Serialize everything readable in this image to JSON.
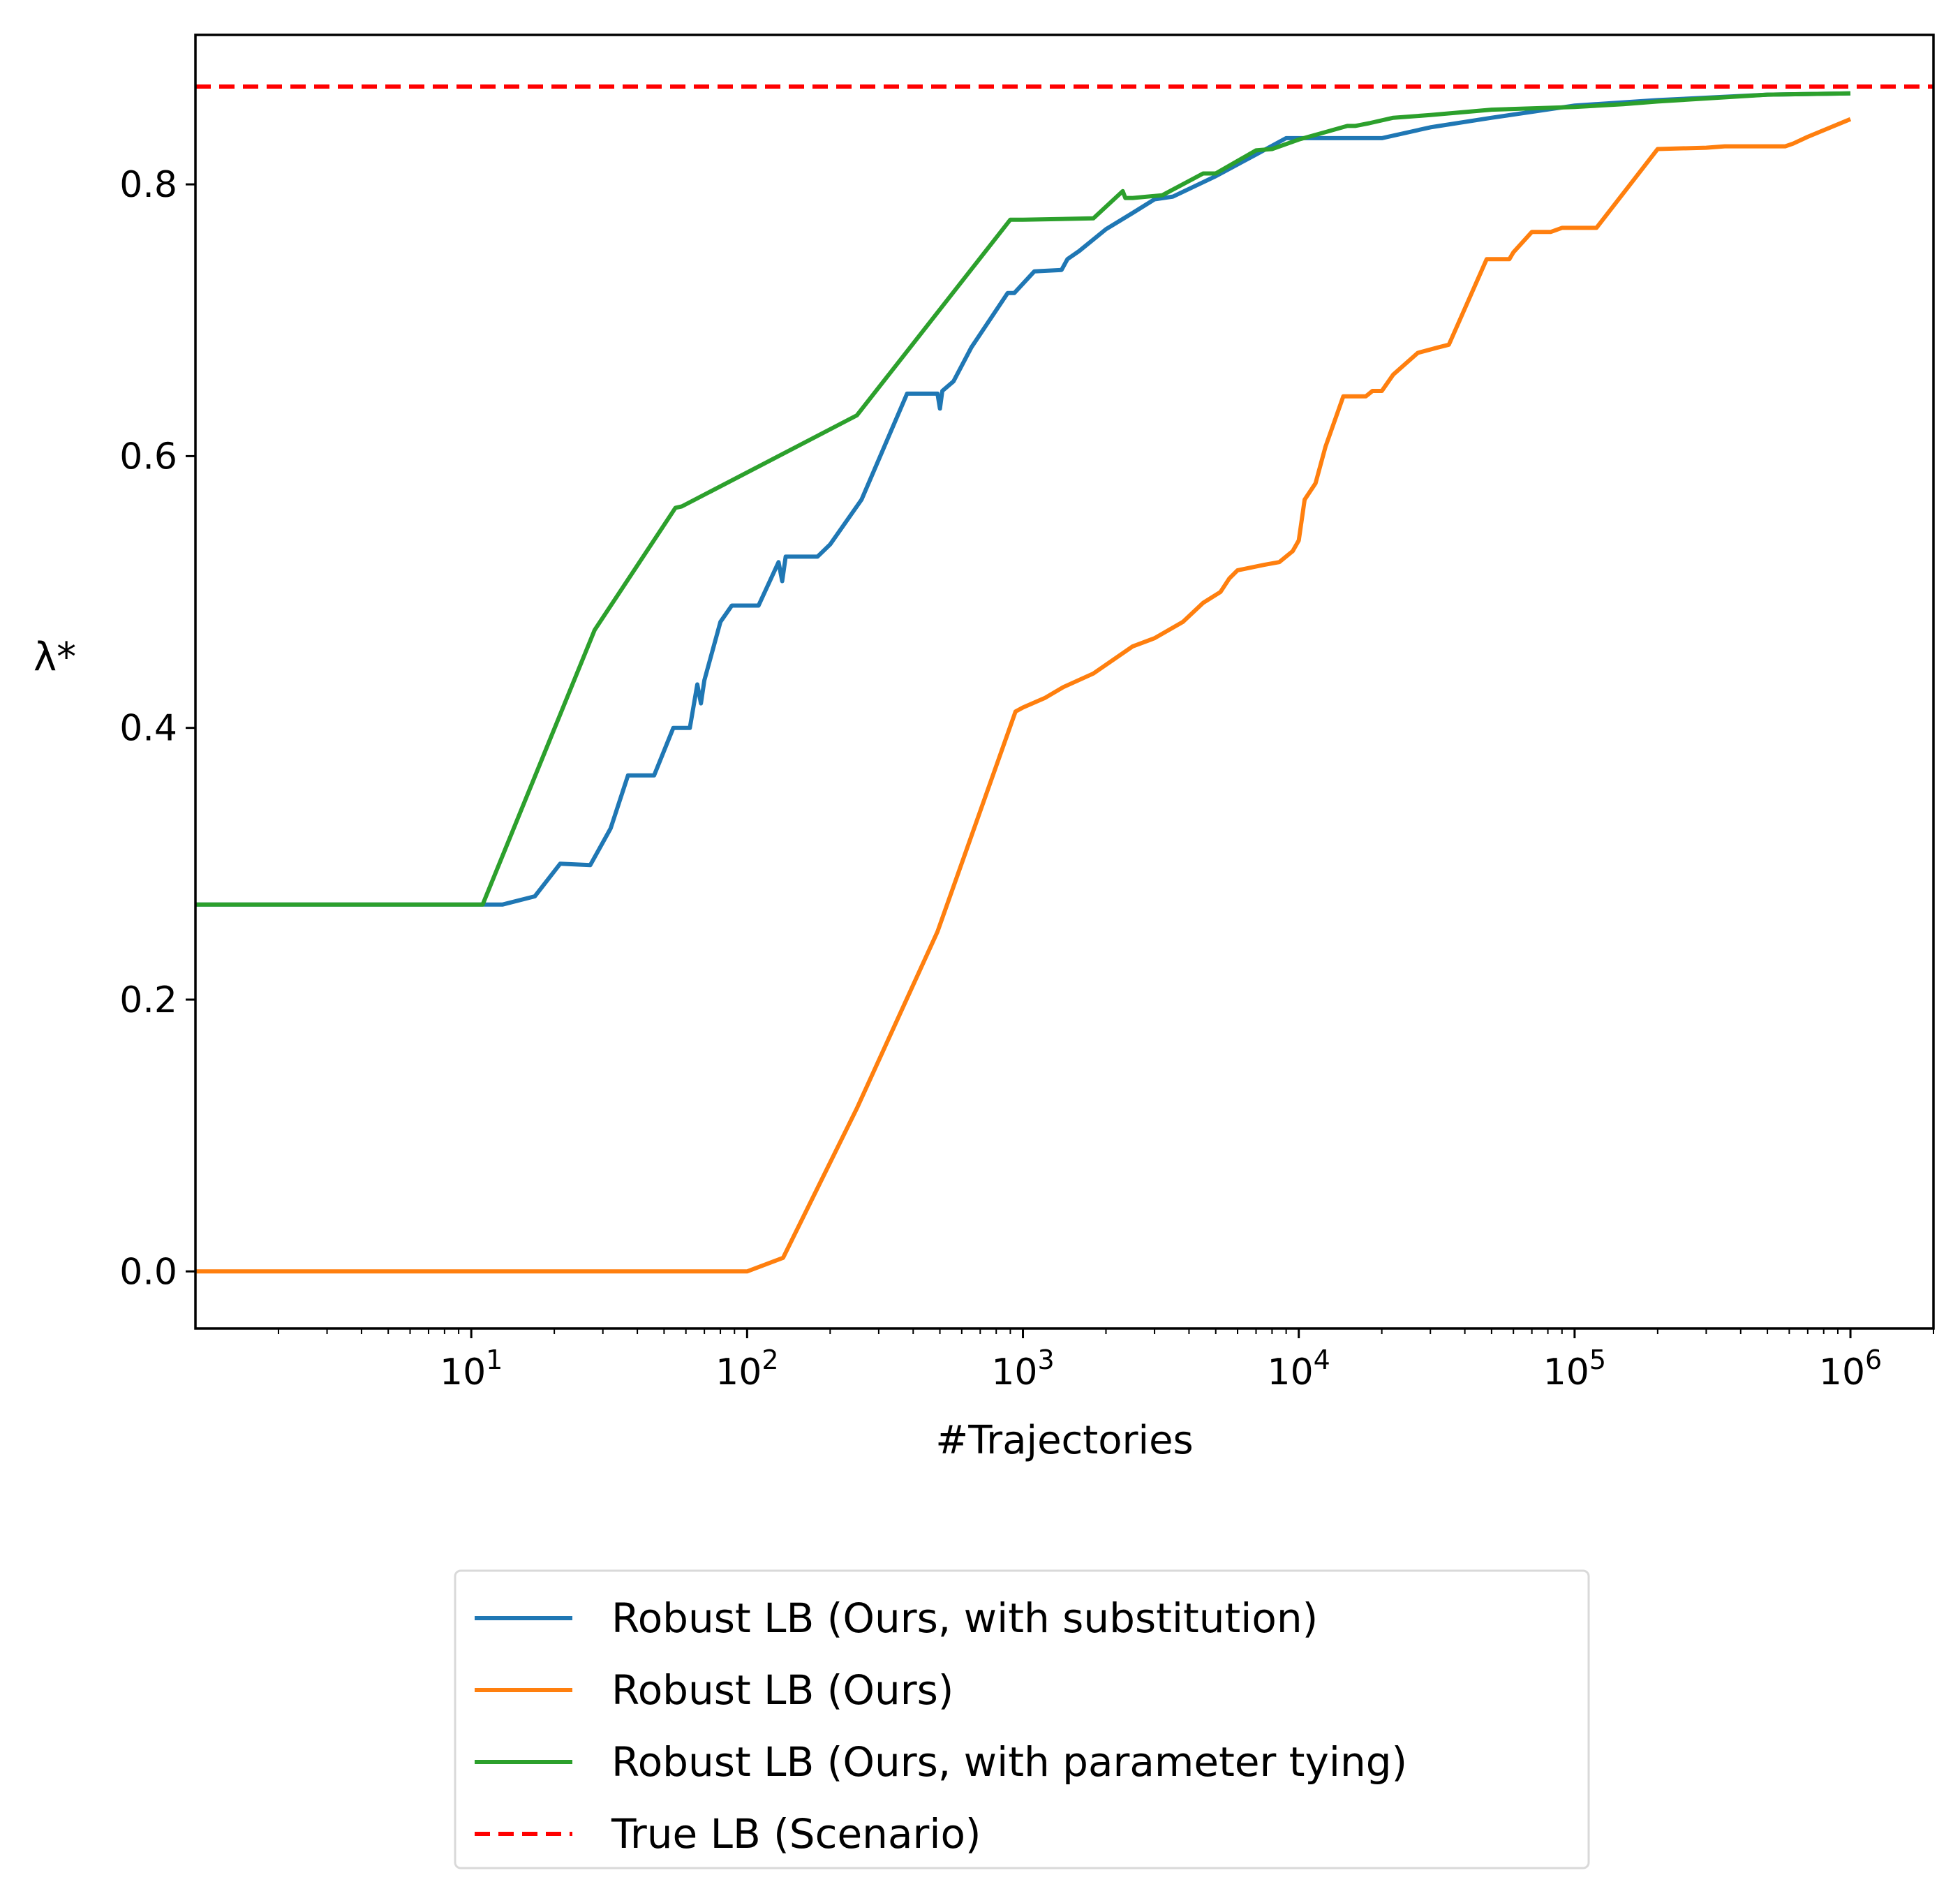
{
  "chart_data": {
    "type": "line",
    "title": "",
    "xlabel": "#Trajectories",
    "ylabel": "λ*",
    "x_scale": "log",
    "xlim": [
      1,
      2000000
    ],
    "ylim": [
      -0.042,
      0.91
    ],
    "x_ticks": [
      {
        "value": 10,
        "base": "10",
        "exp": "1"
      },
      {
        "value": 100,
        "base": "10",
        "exp": "2"
      },
      {
        "value": 1000,
        "base": "10",
        "exp": "3"
      },
      {
        "value": 10000,
        "base": "10",
        "exp": "4"
      },
      {
        "value": 100000,
        "base": "10",
        "exp": "5"
      },
      {
        "value": 1000000,
        "base": "10",
        "exp": "6"
      }
    ],
    "y_ticks": [
      {
        "value": 0.0,
        "label": "0.0"
      },
      {
        "value": 0.2,
        "label": "0.2"
      },
      {
        "value": 0.4,
        "label": "0.4"
      },
      {
        "value": 0.6,
        "label": "0.6"
      },
      {
        "value": 0.8,
        "label": "0.8"
      }
    ],
    "grid": false,
    "legend_position": "below-center",
    "series": [
      {
        "name": "Robust LB (Ours, with substitution)",
        "color": "#1f77b4",
        "style": "solid",
        "x": [
          1,
          11,
          13,
          17,
          21,
          27,
          32,
          37,
          46,
          54,
          62,
          66,
          68,
          70,
          80,
          88,
          100,
          110,
          130,
          134,
          138,
          180,
          200,
          260,
          380,
          490,
          500,
          510,
          560,
          650,
          880,
          930,
          1100,
          1380,
          1450,
          1600,
          2000,
          2500,
          3000,
          3500,
          5000,
          7000,
          9000,
          12000,
          20000,
          30000,
          50000,
          100000,
          200000,
          500000,
          1000000
        ],
        "y": [
          0.27,
          0.27,
          0.27,
          0.276,
          0.3,
          0.299,
          0.326,
          0.365,
          0.365,
          0.4,
          0.4,
          0.432,
          0.418,
          0.435,
          0.478,
          0.49,
          0.49,
          0.49,
          0.522,
          0.508,
          0.526,
          0.526,
          0.535,
          0.568,
          0.646,
          0.646,
          0.635,
          0.648,
          0.655,
          0.68,
          0.72,
          0.72,
          0.736,
          0.737,
          0.745,
          0.751,
          0.767,
          0.779,
          0.789,
          0.791,
          0.806,
          0.822,
          0.834,
          0.834,
          0.834,
          0.842,
          0.849,
          0.858,
          0.862,
          0.866,
          0.867
        ]
      },
      {
        "name": "Robust LB (Ours)",
        "color": "#ff7f0e",
        "style": "solid",
        "x": [
          1,
          90,
          100,
          135,
          250,
          490,
          940,
          1000,
          1200,
          1400,
          1800,
          2500,
          3000,
          3800,
          4500,
          5200,
          5600,
          6000,
          7500,
          8500,
          9500,
          10000,
          10500,
          11500,
          12500,
          14500,
          16000,
          17500,
          18500,
          20000,
          22000,
          27000,
          32000,
          35000,
          48000,
          58000,
          60000,
          70000,
          82000,
          90000,
          100000,
          120000,
          200000,
          300000,
          350000,
          500000,
          580000,
          620000,
          700000,
          1000000
        ],
        "y": [
          0.0,
          0.0,
          0.0,
          0.01,
          0.12,
          0.25,
          0.412,
          0.415,
          0.422,
          0.43,
          0.44,
          0.46,
          0.466,
          0.478,
          0.492,
          0.5,
          0.51,
          0.516,
          0.52,
          0.522,
          0.53,
          0.538,
          0.568,
          0.58,
          0.607,
          0.644,
          0.644,
          0.644,
          0.648,
          0.648,
          0.66,
          0.676,
          0.68,
          0.682,
          0.745,
          0.745,
          0.75,
          0.765,
          0.765,
          0.768,
          0.768,
          0.768,
          0.826,
          0.827,
          0.828,
          0.828,
          0.828,
          0.83,
          0.835,
          0.848
        ]
      },
      {
        "name": "Robust LB (Ours, with parameter tying)",
        "color": "#2ca02c",
        "style": "solid",
        "x": [
          1,
          11,
          28,
          55,
          58,
          250,
          900,
          1000,
          1800,
          2300,
          2350,
          2500,
          3200,
          4500,
          5000,
          7000,
          8000,
          10000,
          15000,
          16000,
          18000,
          22000,
          30000,
          50000,
          100000,
          150000,
          200000,
          500000,
          1000000
        ],
        "y": [
          0.27,
          0.27,
          0.472,
          0.562,
          0.563,
          0.63,
          0.774,
          0.774,
          0.775,
          0.795,
          0.79,
          0.79,
          0.792,
          0.808,
          0.808,
          0.825,
          0.826,
          0.833,
          0.843,
          0.843,
          0.845,
          0.849,
          0.851,
          0.855,
          0.857,
          0.859,
          0.861,
          0.866,
          0.867
        ]
      },
      {
        "name": "True LB (Scenario)",
        "color": "#ff0000",
        "style": "dashed",
        "x": [
          1,
          2000000
        ],
        "y": [
          0.872,
          0.872
        ]
      }
    ]
  }
}
